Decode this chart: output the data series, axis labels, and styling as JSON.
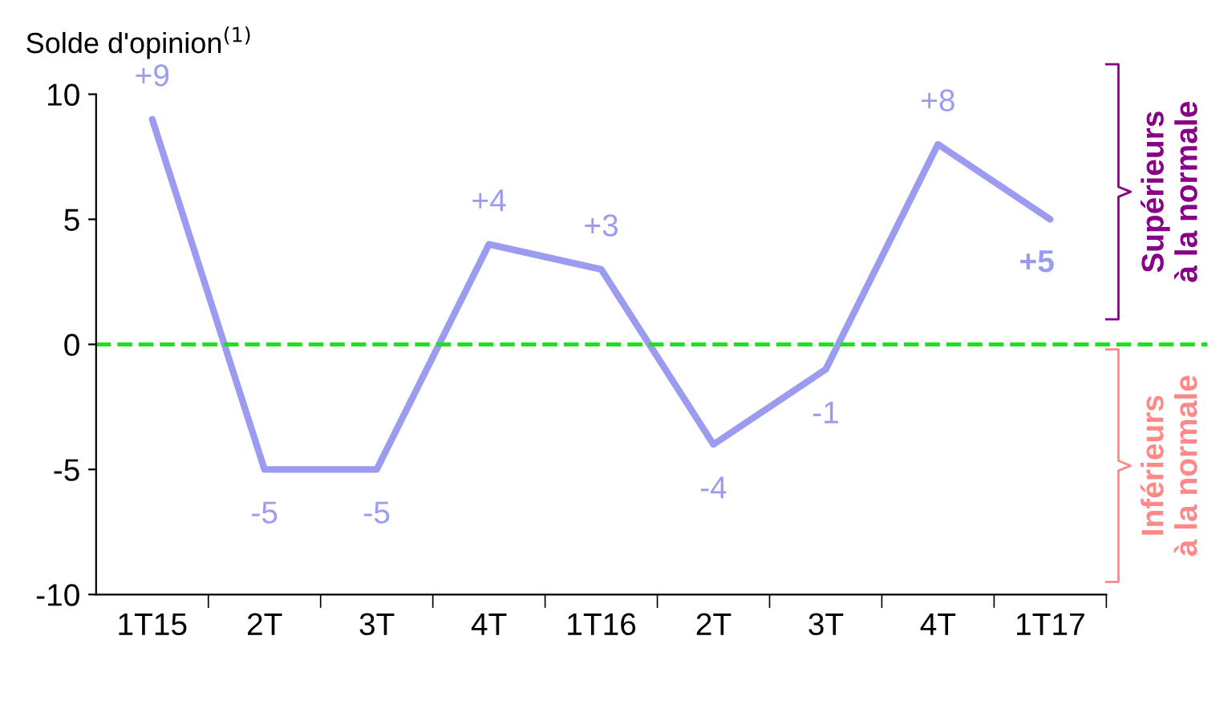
{
  "chart_data": {
    "type": "line",
    "ylabel": "Solde d'opinion$^{(1)}$",
    "categories": [
      "1T15",
      "2T",
      "3T",
      "4T",
      "1T16",
      "2T",
      "3T",
      "4T",
      "1T17"
    ],
    "series": [
      {
        "color": "#9b9bf0",
        "values": [
          9,
          -5,
          -5,
          4,
          3,
          -4,
          -1,
          8,
          5
        ],
        "value_labels": [
          "+9",
          "-5",
          "-5",
          "+4",
          "+3",
          "-4",
          "-1",
          "+8",
          "+5"
        ]
      }
    ],
    "ylim": [
      -10,
      10
    ],
    "yticks": [
      -10,
      -5,
      0,
      5,
      10
    ],
    "grid": false,
    "legend": false,
    "marker": "none",
    "line_style": "solid",
    "ref_lines": [
      {
        "axis": "y",
        "value": 0,
        "color": "#22dd22",
        "line_style": "dashed"
      }
    ],
    "annotations": [
      "Supérieurs\nà la normale",
      "Inférieurs\nà la normale"
    ]
  }
}
